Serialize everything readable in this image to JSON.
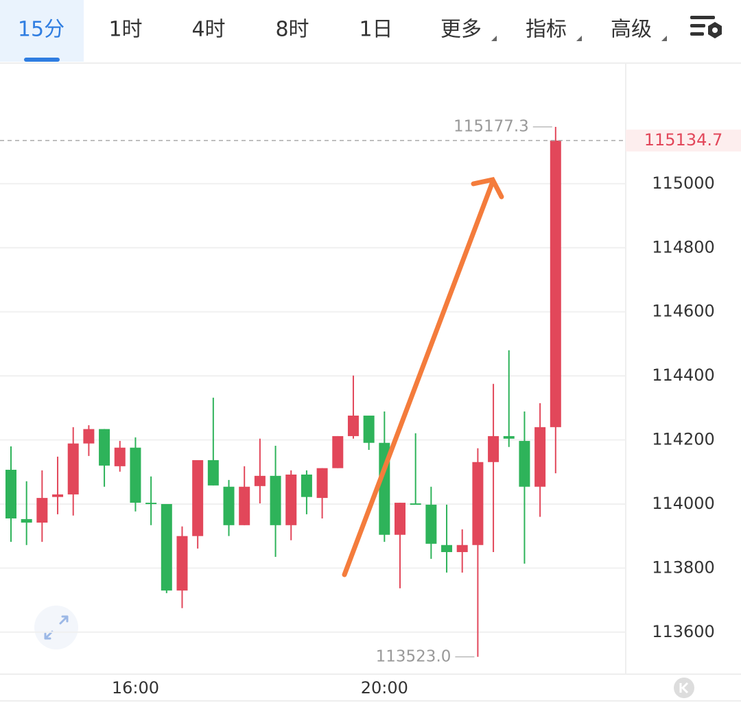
{
  "tabs": [
    "15分",
    "1时",
    "4时",
    "8时",
    "1日",
    "更多",
    "指标",
    "高级"
  ],
  "chart_data": {
    "type": "candlestick",
    "categories": [
      null,
      null,
      null,
      null,
      null,
      null,
      null,
      null,
      "16:00",
      null,
      null,
      null,
      null,
      null,
      null,
      null,
      null,
      null,
      null,
      null,
      null,
      null,
      null,
      null,
      "20:00",
      null,
      null,
      null,
      null,
      null,
      null,
      null,
      null,
      null,
      null,
      null
    ],
    "open": [
      114107,
      113953,
      113942,
      114022,
      114030,
      114189,
      114234,
      114118,
      114176,
      114004,
      114000,
      113730,
      113900,
      114137,
      114054,
      113934,
      114056,
      114088,
      113934,
      114092,
      114019,
      114112,
      114212,
      114276,
      114191,
      113904,
      114002,
      113998,
      113872,
      113850,
      113872,
      114131,
      114212,
      114197,
      114054,
      114240
    ],
    "high": [
      114180,
      114071,
      114105,
      114148,
      114240,
      114246,
      114234,
      114197,
      114208,
      114086,
      114000,
      113930,
      114137,
      114332,
      114075,
      114118,
      114204,
      114182,
      114105,
      114105,
      114112,
      114212,
      114401,
      114276,
      114289,
      114004,
      114221,
      114054,
      113998,
      113921,
      114174,
      114375,
      114480,
      114289,
      114315,
      115177.3
    ],
    "low": [
      113882,
      113872,
      113882,
      113968,
      113964,
      114150,
      114054,
      114101,
      113977,
      113934,
      113722,
      113675,
      113861,
      114058,
      113900,
      113934,
      114002,
      113835,
      113887,
      113968,
      113955,
      114112,
      114204,
      114169,
      113882,
      113737,
      114002,
      113829,
      113786,
      113786,
      113523.0,
      113850,
      114178,
      113814,
      113960,
      114096
    ],
    "close": [
      113955,
      113942,
      114019,
      114030,
      114189,
      114234,
      114120,
      114176,
      114004,
      114002,
      113730,
      113900,
      114137,
      114058,
      113934,
      114054,
      114088,
      113934,
      114092,
      114022,
      114112,
      114212,
      114276,
      114191,
      113904,
      114004,
      114002,
      113876,
      113850,
      113872,
      114131,
      114212,
      114204,
      114054,
      114240,
      115134.7
    ],
    "up_color": "#e2475a",
    "down_color": "#2eb35a",
    "ylim": [
      113469,
      115370
    ],
    "yticks": [
      113600,
      113800,
      114000,
      114200,
      114400,
      114600,
      114800,
      115000
    ],
    "grid": true,
    "annotations": [
      {
        "value": 115177.3,
        "label": "115177.3"
      },
      {
        "value": 113523.0,
        "label": "113523.0"
      }
    ],
    "last_price": {
      "value": 115134.7,
      "label": "115134.7"
    }
  }
}
